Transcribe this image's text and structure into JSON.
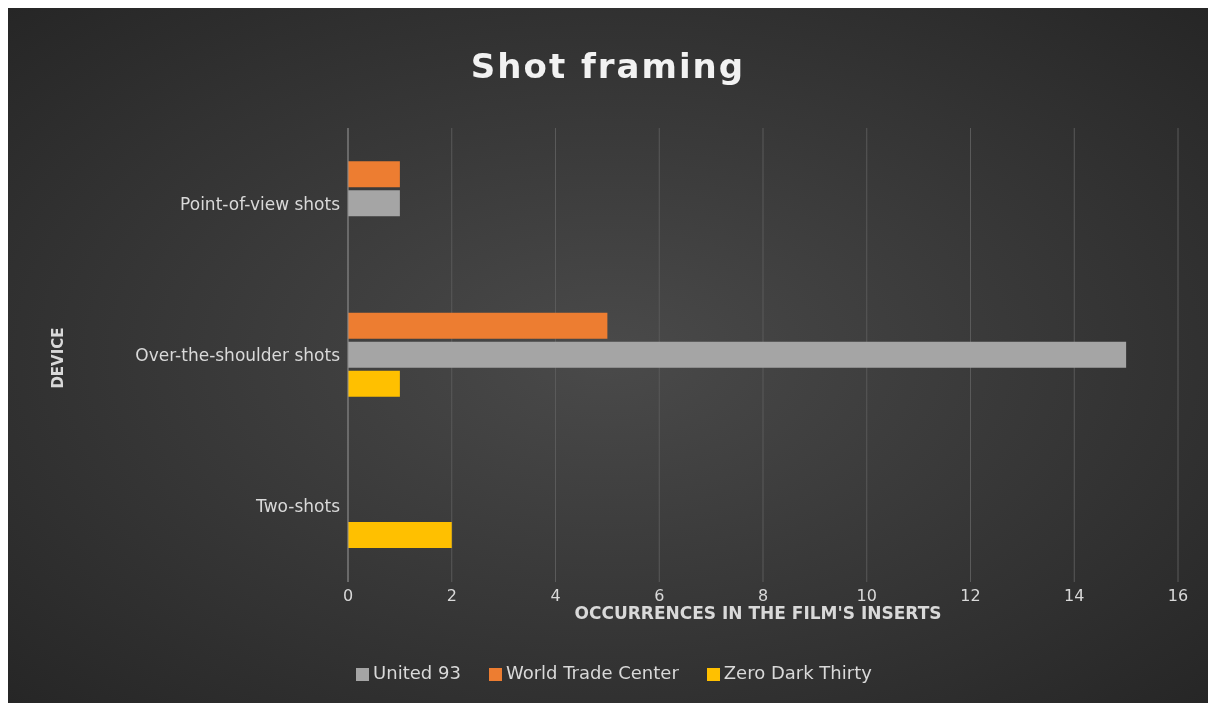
{
  "chart_data": {
    "type": "bar",
    "orientation": "horizontal",
    "title": "Shot framing",
    "xlabel": "OCCURRENCES IN THE FILM'S INSERTS",
    "ylabel": "DEVICE",
    "categories": [
      "Point-of-view shots",
      "Over-the-shoulder shots",
      "Two-shots"
    ],
    "series": [
      {
        "name": "World Trade Center",
        "color": "#ed7d31",
        "values": [
          1,
          5,
          0
        ]
      },
      {
        "name": "United 93",
        "color": "#a5a5a5",
        "values": [
          1,
          15,
          0
        ]
      },
      {
        "name": "Zero Dark Thirty",
        "color": "#ffc000",
        "values": [
          0,
          1,
          2
        ]
      }
    ],
    "xlim": [
      0,
      16
    ],
    "xticks": [
      0,
      2,
      4,
      6,
      8,
      10,
      12,
      14,
      16
    ],
    "grid": "x",
    "legend": "bottom"
  }
}
